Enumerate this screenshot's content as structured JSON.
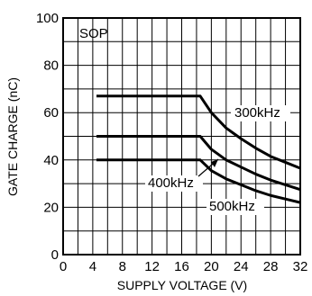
{
  "chart_data": {
    "type": "line",
    "xlabel": "SUPPLY VOLTAGE (V)",
    "ylabel": "GATE CHARGE (nC)",
    "xlim": [
      0,
      32
    ],
    "ylim": [
      0,
      100
    ],
    "xticks": [
      0,
      4,
      8,
      12,
      16,
      20,
      24,
      28,
      32
    ],
    "yticks": [
      0,
      20,
      40,
      60,
      80,
      100
    ],
    "grid": true,
    "annotations": {
      "package": "SOP"
    },
    "series": [
      {
        "name": "300kHz",
        "x": [
          4.5,
          18.5,
          20,
          22,
          24,
          26,
          28,
          30,
          32
        ],
        "y": [
          67,
          67,
          60,
          53.5,
          49,
          45,
          41.5,
          39,
          36.5
        ]
      },
      {
        "name": "400kHz",
        "x": [
          4.5,
          18.5,
          20,
          22,
          24,
          26,
          28,
          30,
          32
        ],
        "y": [
          50,
          50,
          44.5,
          40,
          37,
          34,
          31.5,
          29.5,
          27.5
        ]
      },
      {
        "name": "500kHz",
        "x": [
          4.5,
          18.5,
          20,
          22,
          24,
          26,
          28,
          30,
          32
        ],
        "y": [
          40,
          40,
          35.5,
          32,
          29.5,
          27,
          25,
          23.5,
          22
        ]
      }
    ],
    "colors": {
      "line": "#000000",
      "grid": "#000000",
      "background": "#ffffff"
    }
  }
}
